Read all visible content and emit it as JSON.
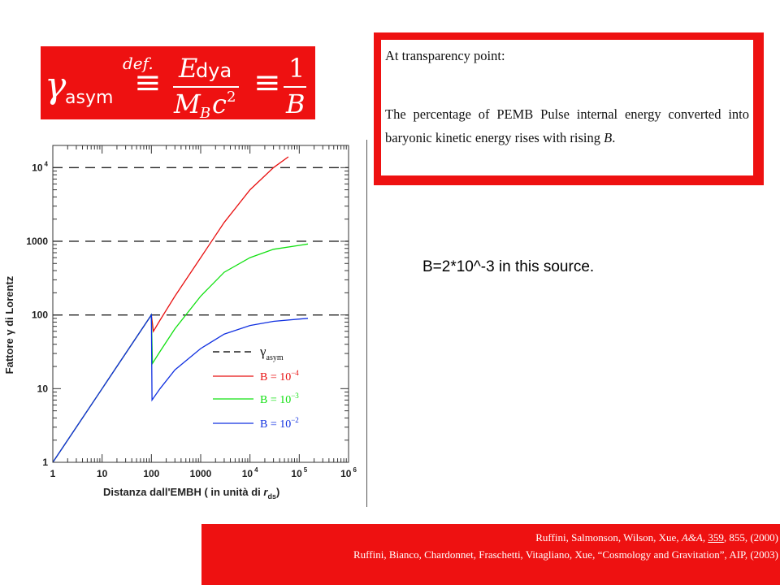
{
  "formula": {
    "gamma": "γ",
    "sub_asym": "asym",
    "equiv": "≡",
    "def": "def.",
    "num_E": "E",
    "num_sub": "dya",
    "den_M": "M",
    "den_sub": "B",
    "den_c": "c",
    "den_exp": "2",
    "rhs_one": "1",
    "rhs_B": "B",
    "background": "#ee1111"
  },
  "note": {
    "heading": "At transparency point:",
    "body": "The percentage of PEMB Pulse internal energy converted into baryonic kinetic energy rises with rising",
    "body_var": "B",
    "body_end": ".",
    "frame_color": "#ee1111"
  },
  "source_note": "B=2*10^-3 in this source.",
  "references": {
    "line1_pre": "Ruffini, Salmonson, Wilson, Xue,",
    "line1_journal": "A&A,",
    "line1_volume": "359",
    "line1_post": ", 855, (2000)",
    "line2": "Ruffini, Bianco, Chardonnet, Fraschetti, Vitagliano, Xue, “Cosmology and Gravitation”, AIP, (2003)"
  },
  "chart_data": {
    "type": "line",
    "xscale": "log",
    "yscale": "log",
    "xlim": [
      1,
      1000000
    ],
    "ylim": [
      1,
      20000
    ],
    "x_ticks": [
      {
        "value": 1,
        "label": "1",
        "exp": ""
      },
      {
        "value": 10,
        "label": "10",
        "exp": ""
      },
      {
        "value": 100,
        "label": "100",
        "exp": ""
      },
      {
        "value": 1000,
        "label": "1000",
        "exp": ""
      },
      {
        "value": 10000,
        "label": "10",
        "exp": "4"
      },
      {
        "value": 100000,
        "label": "10",
        "exp": "5"
      },
      {
        "value": 1000000,
        "label": "10",
        "exp": "6"
      }
    ],
    "y_ticks": [
      {
        "value": 1,
        "label": "1",
        "exp": ""
      },
      {
        "value": 10,
        "label": "10",
        "exp": ""
      },
      {
        "value": 100,
        "label": "100",
        "exp": ""
      },
      {
        "value": 1000,
        "label": "1000",
        "exp": ""
      },
      {
        "value": 10000,
        "label": "10",
        "exp": "4"
      }
    ],
    "xlabel": "Distanza dall'EMBH ( in unità di",
    "xlabel_var": "r",
    "xlabel_sub": "ds",
    "xlabel_end": ")",
    "ylabel": "Fattore γ di Lorentz",
    "asymptotes": [
      100,
      1000,
      10000
    ],
    "asym_legend": {
      "symbol": "γ",
      "sub": "asym"
    },
    "series": [
      {
        "name_pre": "B = 10",
        "name_exp": "−4",
        "color": "#e81010",
        "points": [
          [
            1,
            1
          ],
          [
            10,
            10
          ],
          [
            100,
            100
          ],
          [
            110,
            60
          ],
          [
            150,
            85
          ],
          [
            300,
            180
          ],
          [
            1000,
            600
          ],
          [
            3000,
            1800
          ],
          [
            10000,
            5000
          ],
          [
            30000,
            10000
          ],
          [
            60000,
            14000
          ]
        ]
      },
      {
        "name_pre": "B = 10",
        "name_exp": "−3",
        "color": "#10e010",
        "points": [
          [
            1,
            1
          ],
          [
            10,
            10
          ],
          [
            100,
            100
          ],
          [
            105,
            22
          ],
          [
            150,
            32
          ],
          [
            300,
            65
          ],
          [
            1000,
            180
          ],
          [
            3000,
            380
          ],
          [
            10000,
            600
          ],
          [
            30000,
            780
          ],
          [
            100000,
            880
          ],
          [
            150000,
            920
          ]
        ]
      },
      {
        "name_pre": "B = 10",
        "name_exp": "−2",
        "color": "#1030e0",
        "points": [
          [
            1,
            1
          ],
          [
            10,
            10
          ],
          [
            100,
            100
          ],
          [
            103,
            7
          ],
          [
            150,
            10
          ],
          [
            300,
            18
          ],
          [
            1000,
            35
          ],
          [
            3000,
            55
          ],
          [
            10000,
            72
          ],
          [
            30000,
            82
          ],
          [
            100000,
            88
          ],
          [
            150000,
            90
          ]
        ]
      }
    ]
  }
}
